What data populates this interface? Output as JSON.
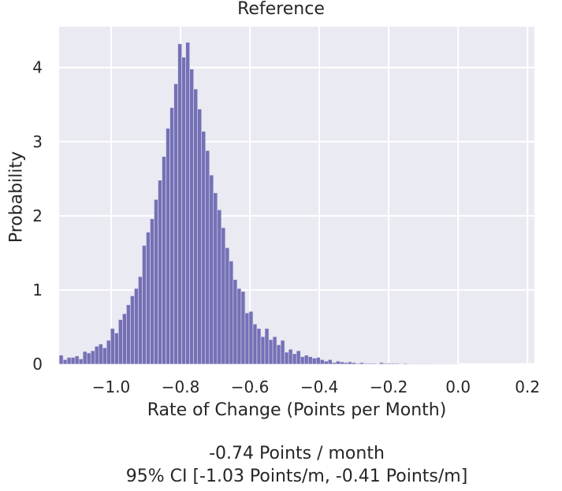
{
  "annotations": {
    "estimate": "-0.74 Points / month",
    "ci": "95% CI [-1.03 Points/m, -0.41 Points/m]"
  },
  "chart_data": {
    "type": "bar",
    "title": "Reference",
    "xlabel": "Rate of Change (Points per Month)",
    "ylabel": "Probability",
    "xlim": [
      -1.15,
      0.22
    ],
    "ylim": [
      0,
      4.55
    ],
    "x_ticks": [
      -1.0,
      -0.8,
      -0.6,
      -0.4,
      -0.2,
      0.0,
      0.2
    ],
    "x_tick_labels": [
      "−1.0",
      "−0.8",
      "−0.6",
      "−0.4",
      "−0.2",
      "0.0",
      "0.2"
    ],
    "y_ticks": [
      0,
      1,
      2,
      3,
      4
    ],
    "y_tick_labels": [
      "0",
      "1",
      "2",
      "3",
      "4"
    ],
    "grid": true,
    "colors": {
      "bar": "#7570b6",
      "bar_edge": "#e0e0ee",
      "background": "#eaeaf2",
      "grid": "#ffffff"
    },
    "bin_width": 0.0114,
    "bins": [
      -1.1498,
      -1.1384,
      -1.127,
      -1.1156,
      -1.1042,
      -1.0928,
      -1.0814,
      -1.07,
      -1.0586,
      -1.0472,
      -1.0358,
      -1.0244,
      -1.013,
      -1.0016,
      -0.9902,
      -0.9788,
      -0.9674,
      -0.956,
      -0.9446,
      -0.9332,
      -0.9218,
      -0.9104,
      -0.899,
      -0.8876,
      -0.8762,
      -0.8648,
      -0.8534,
      -0.842,
      -0.8306,
      -0.8192,
      -0.8078,
      -0.7964,
      -0.785,
      -0.7736,
      -0.7622,
      -0.7508,
      -0.7394,
      -0.728,
      -0.7166,
      -0.7052,
      -0.6938,
      -0.6824,
      -0.671,
      -0.6596,
      -0.6482,
      -0.6368,
      -0.6254,
      -0.614,
      -0.6026,
      -0.5912,
      -0.5798,
      -0.5684,
      -0.557,
      -0.5456,
      -0.5342,
      -0.5228,
      -0.5114,
      -0.5,
      -0.4886,
      -0.4772,
      -0.4658,
      -0.4544,
      -0.443,
      -0.4316,
      -0.4202,
      -0.4088,
      -0.3974,
      -0.386,
      -0.3746,
      -0.3632,
      -0.3518,
      -0.3404,
      -0.329,
      -0.3176,
      -0.3062,
      -0.2948,
      -0.2834,
      -0.272,
      -0.2606,
      -0.2492,
      -0.2378,
      -0.2264,
      -0.215,
      -0.2036,
      -0.1922,
      -0.1808,
      -0.1694,
      -0.158,
      -0.1466,
      -0.1352,
      -0.1238,
      -0.1124,
      -0.101,
      -0.0896,
      -0.0782,
      -0.0668,
      -0.0554,
      -0.044,
      -0.0326,
      -0.0212,
      -0.0098
    ],
    "values": [
      0.12,
      0.06,
      0.09,
      0.09,
      0.11,
      0.07,
      0.17,
      0.15,
      0.18,
      0.24,
      0.27,
      0.22,
      0.32,
      0.48,
      0.42,
      0.6,
      0.68,
      0.8,
      0.92,
      1.02,
      1.18,
      1.6,
      1.78,
      1.96,
      2.22,
      2.48,
      2.8,
      3.18,
      3.46,
      3.78,
      4.32,
      4.14,
      4.34,
      3.98,
      3.71,
      3.44,
      3.14,
      2.88,
      2.55,
      2.31,
      2.08,
      1.84,
      1.57,
      1.39,
      1.14,
      1.02,
      0.98,
      0.69,
      0.71,
      0.54,
      0.48,
      0.37,
      0.48,
      0.33,
      0.37,
      0.26,
      0.32,
      0.16,
      0.2,
      0.14,
      0.18,
      0.1,
      0.12,
      0.1,
      0.08,
      0.09,
      0.06,
      0.04,
      0.06,
      0.02,
      0.04,
      0.03,
      0.02,
      0.03,
      0.02,
      0.01,
      0.02,
      0.01,
      0.01,
      0.01,
      0.005,
      0.02,
      0.01,
      0.01,
      0.01,
      0.01,
      0.005,
      0.01,
      0.005,
      0.005,
      0.005,
      0.005,
      0.005,
      0.005,
      0.005,
      0.003,
      0.003,
      0.003,
      0.002,
      0.002,
      0.002
    ]
  }
}
